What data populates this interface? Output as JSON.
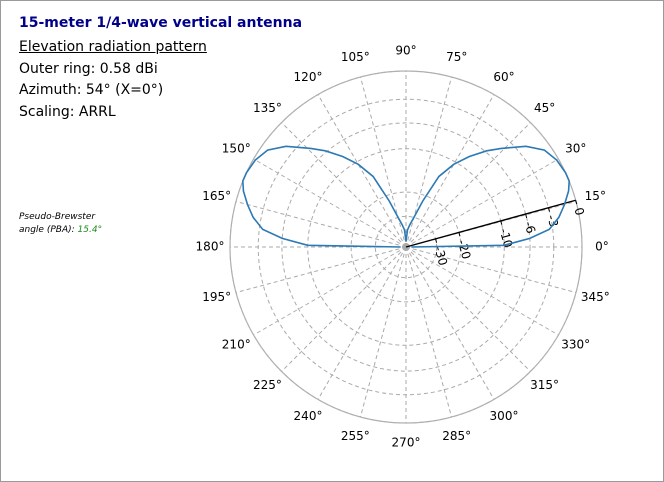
{
  "chart_data": {
    "type": "polar",
    "title": "15-meter 1/4-wave vertical antenna",
    "subtitle": "Elevation radiation pattern",
    "info": [
      "Outer ring: 0.58 dBi",
      "Azimuth: 54° (X=0°)",
      "Scaling: ARRL"
    ],
    "annotation": {
      "text": "Pseudo-Brewster angle (PBA):",
      "value": 15.4,
      "value_label": "15.4°"
    },
    "color": "#2b79b5",
    "theta": [
      0,
      1,
      4,
      7,
      11,
      15,
      19,
      22,
      25,
      30,
      35,
      40,
      46,
      50,
      55,
      60,
      65,
      70,
      75,
      80,
      85,
      90,
      95,
      100,
      105,
      110,
      115,
      120,
      125,
      130,
      134,
      140,
      145,
      150,
      155,
      158,
      161,
      165,
      169,
      173,
      176,
      179,
      180
    ],
    "values": [
      -60,
      -10,
      -6,
      -3.4,
      -2.1,
      -1.2,
      -0.4,
      0,
      0,
      -0.2,
      -0.7,
      -2,
      -4.3,
      -5.8,
      -8,
      -10.5,
      -14,
      -22,
      -30,
      -35,
      -40,
      -60,
      -40,
      -35,
      -30,
      -22,
      -14,
      -10.5,
      -8,
      -5.8,
      -4.3,
      -2,
      -0.7,
      -0.2,
      0,
      0,
      -0.4,
      -1.2,
      -2.1,
      -3.4,
      -6,
      -10,
      -60
    ],
    "rticks": [
      0,
      -3,
      -6,
      -10,
      -20,
      -30
    ],
    "thetaticks": [
      {
        "value": 0,
        "label": "0°"
      },
      {
        "value": 15,
        "label": "15°"
      },
      {
        "value": 30,
        "label": "30°"
      },
      {
        "value": 45,
        "label": "45°"
      },
      {
        "value": 60,
        "label": "60°"
      },
      {
        "value": 75,
        "label": "75°"
      },
      {
        "value": 90,
        "label": "90°"
      },
      {
        "value": 105,
        "label": "105°"
      },
      {
        "value": 120,
        "label": "120°"
      },
      {
        "value": 135,
        "label": "135°"
      },
      {
        "value": 150,
        "label": "150°"
      },
      {
        "value": 165,
        "label": "165°"
      },
      {
        "value": 180,
        "label": "180°"
      },
      {
        "value": 195,
        "label": "195°"
      },
      {
        "value": 210,
        "label": "210°"
      },
      {
        "value": 225,
        "label": "225°"
      },
      {
        "value": 240,
        "label": "240°"
      },
      {
        "value": 255,
        "label": "255°"
      },
      {
        "value": 270,
        "label": "270°"
      },
      {
        "value": 285,
        "label": "285°"
      },
      {
        "value": 300,
        "label": "300°"
      },
      {
        "value": 315,
        "label": "315°"
      },
      {
        "value": 330,
        "label": "330°"
      },
      {
        "value": 345,
        "label": "345°"
      }
    ],
    "grid": true
  }
}
